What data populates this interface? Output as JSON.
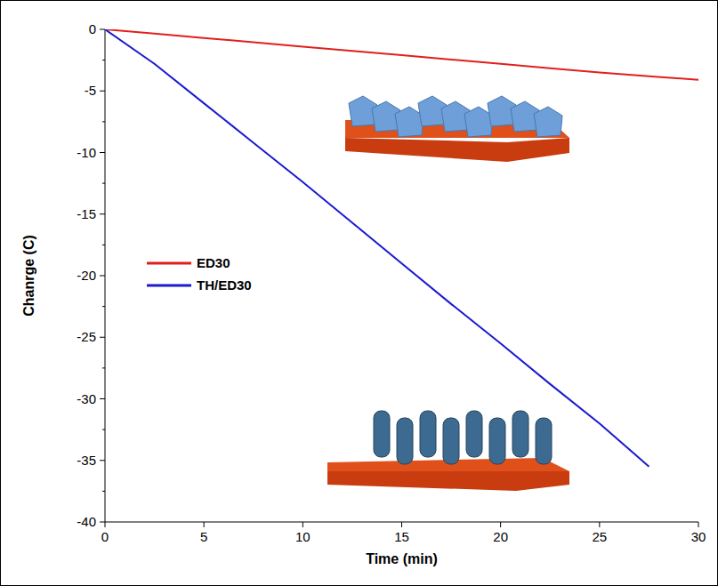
{
  "chart_data": {
    "type": "line",
    "y_label": "Chanrge (C)",
    "x_label": "Time (min)",
    "x": [
      0,
      2.5,
      5,
      7.5,
      10,
      12.5,
      15,
      17.5,
      20,
      22.5,
      25,
      27.5,
      30
    ],
    "series": [
      {
        "name": "ED30",
        "color": "#e0201c",
        "values": [
          0,
          -0.35,
          -0.7,
          -1.05,
          -1.4,
          -1.75,
          -2.1,
          -2.45,
          -2.8,
          -3.15,
          -3.5,
          -3.8,
          -4.1
        ]
      },
      {
        "name": "TH/ED30",
        "color": "#1a1ad0",
        "values": [
          0,
          -2.8,
          -6.0,
          -9.2,
          -12.4,
          -15.7,
          -19.0,
          -22.3,
          -25.5,
          -28.8,
          -32.0,
          -35.5,
          null
        ]
      }
    ],
    "xlim": [
      0,
      30
    ],
    "xticks": [
      0,
      5,
      10,
      15,
      20,
      25,
      30
    ],
    "ylim": [
      -40,
      0
    ],
    "yticks": [
      0,
      -5,
      -10,
      -15,
      -20,
      -25,
      -30,
      -35,
      -40
    ],
    "legend": "left",
    "grid": false
  }
}
